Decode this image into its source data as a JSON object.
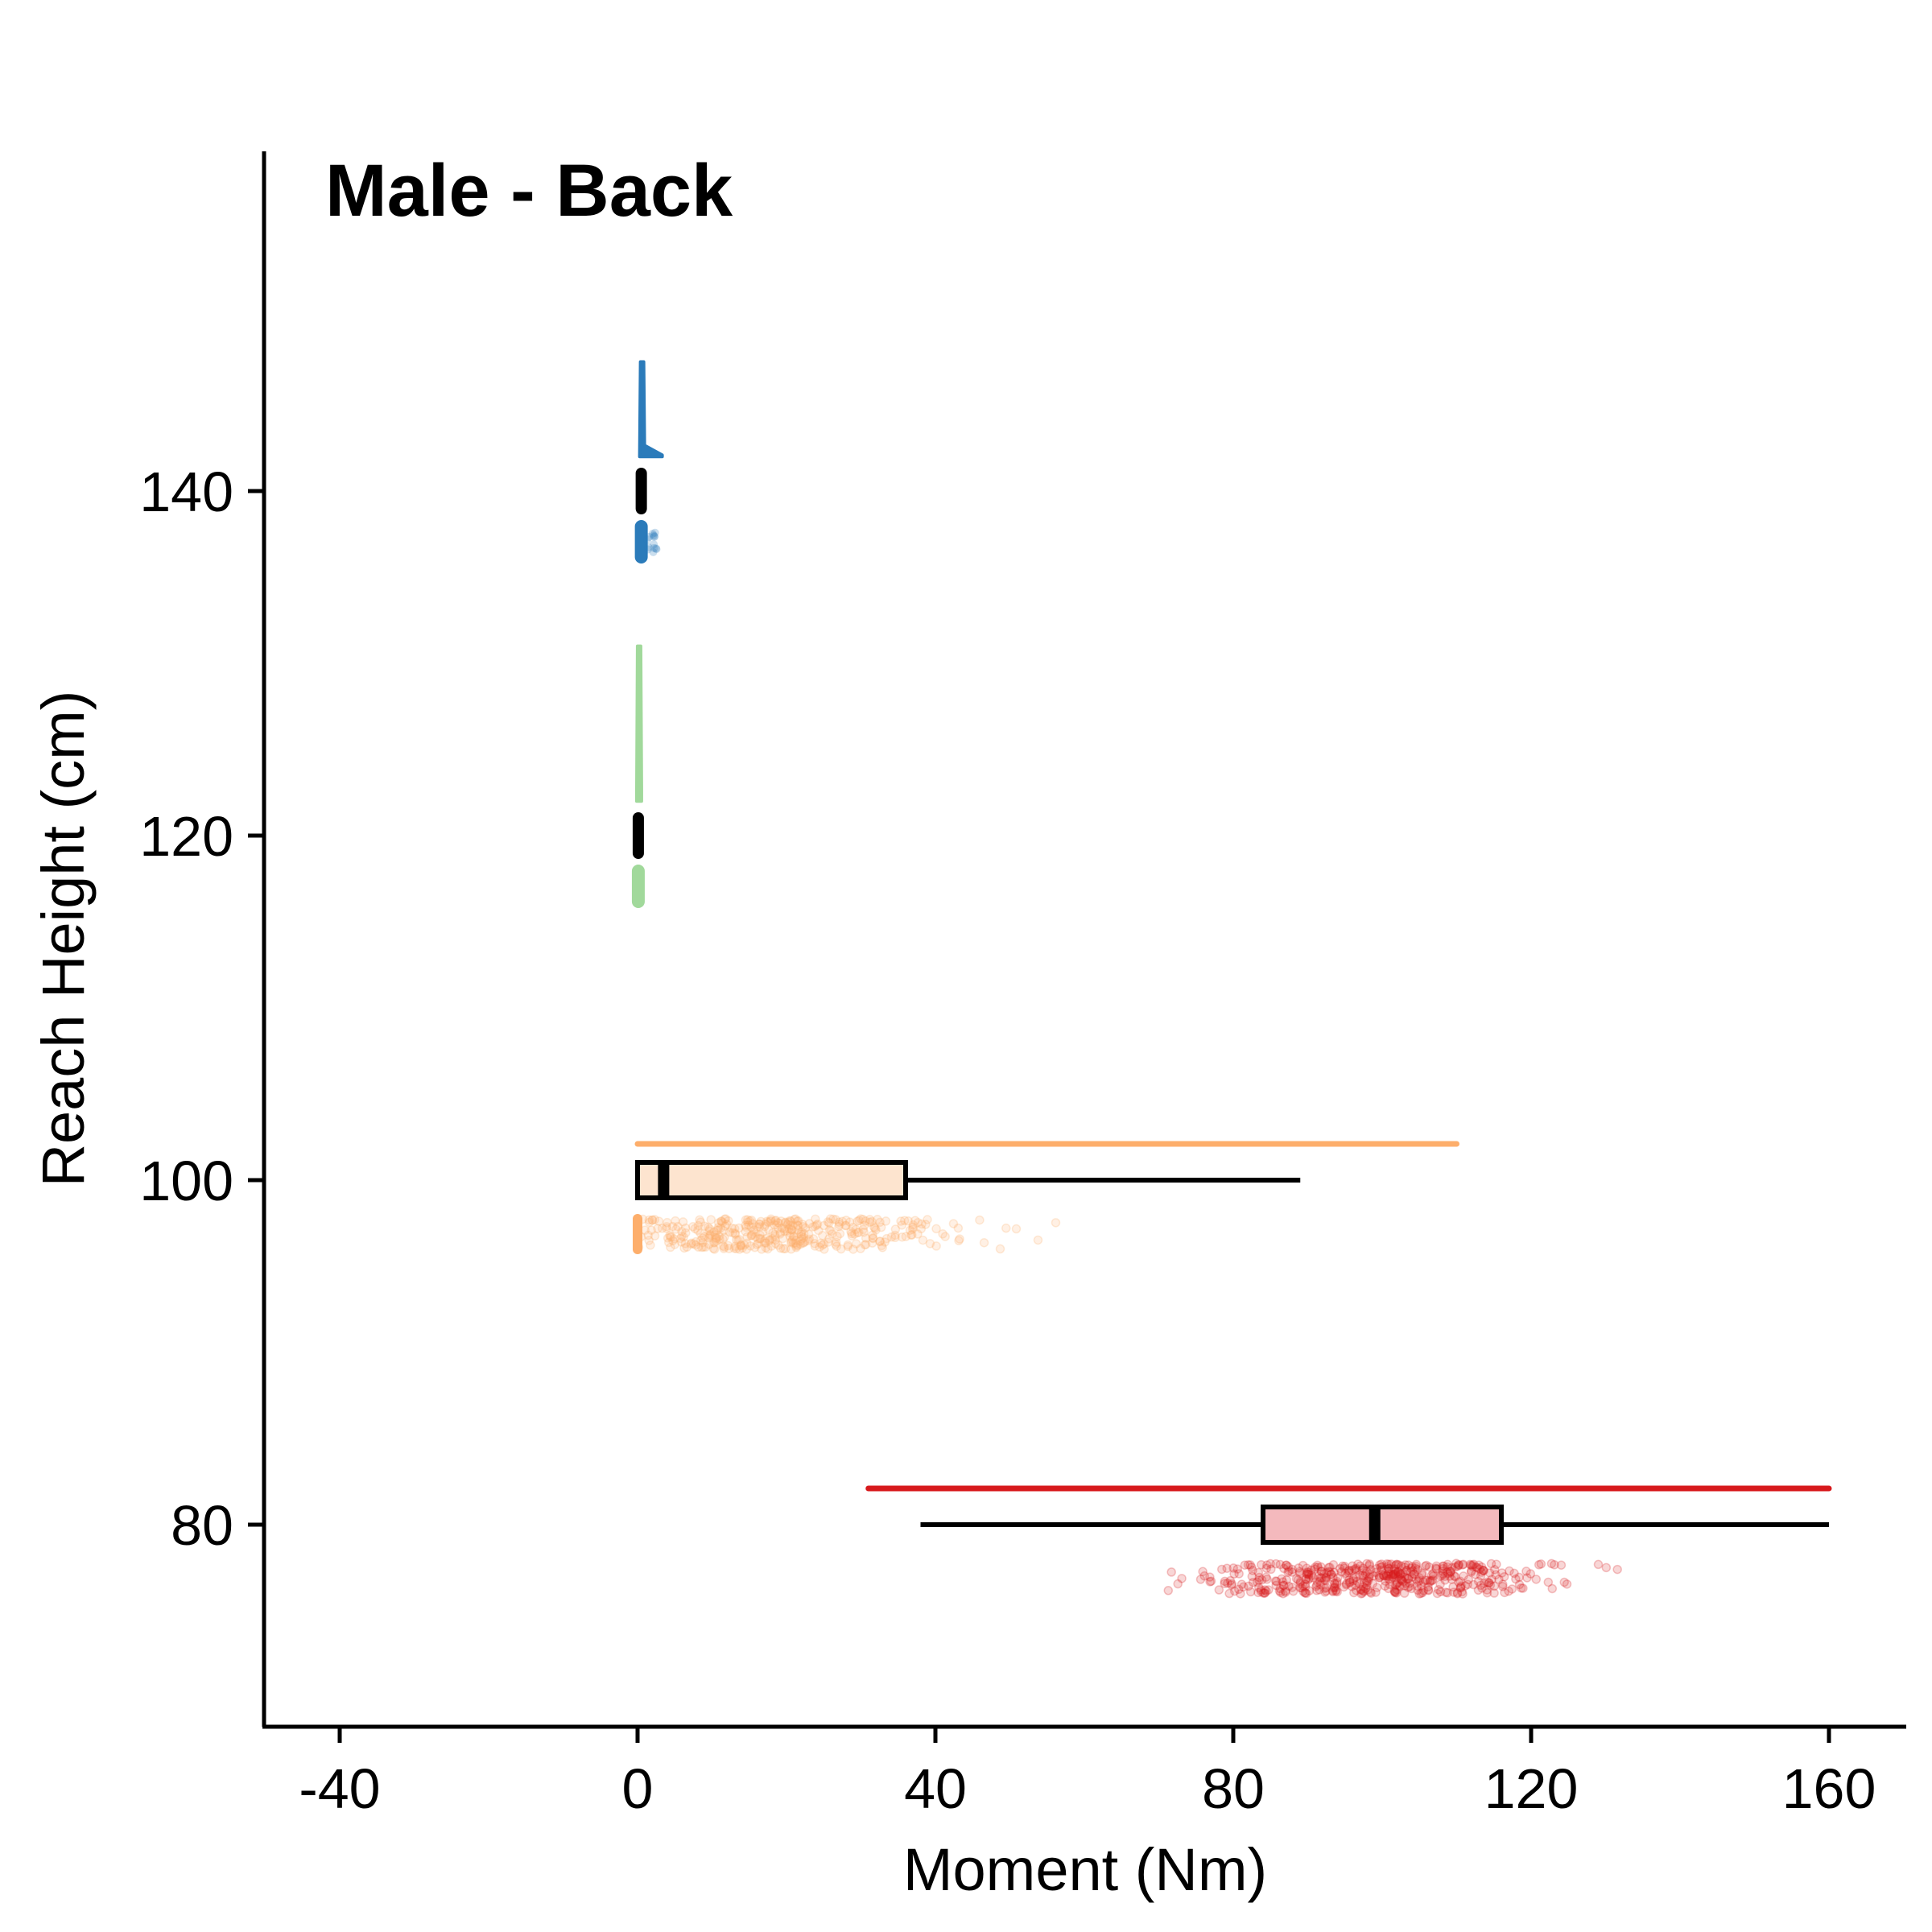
{
  "chart_data": {
    "type": "raincloud",
    "title": "Male - Back",
    "xlabel": "Moment (Nm)",
    "ylabel": "Reach Height (cm)",
    "xlim": [
      -50,
      170
    ],
    "ylim": [
      68,
      160
    ],
    "xticks": [
      -40,
      0,
      40,
      80,
      120,
      160
    ],
    "yticks": [
      80,
      100,
      120,
      140
    ],
    "grid": false,
    "series": [
      {
        "reach_height": 140,
        "color": "#2b7bba",
        "fill": "#c6dbef",
        "box": {
          "q1": 0.2,
          "median": 0.5,
          "q3": 0.9,
          "whisker_low": 0,
          "whisker_high": 1.5
        },
        "density_min": 0,
        "density_max": 2.5,
        "points_range": [
          0,
          2.5
        ]
      },
      {
        "reach_height": 120,
        "color": "#a1d99b",
        "fill": "#e5f5e0",
        "box": {
          "q1": 0,
          "median": 0.1,
          "q3": 0.3,
          "whisker_low": 0,
          "whisker_high": 0.6
        },
        "density_min": 0,
        "density_max": 0.6,
        "points_range": [
          0,
          0.6
        ]
      },
      {
        "reach_height": 100,
        "color": "#fdae6b",
        "fill": "#fde4cf",
        "box": {
          "q1": 0,
          "median": 3.5,
          "q3": 36,
          "whisker_low": 0,
          "whisker_high": 89
        },
        "density_min": 0,
        "density_max": 110,
        "points_range": [
          0,
          110
        ]
      },
      {
        "reach_height": 80,
        "color": "#d7191c",
        "fill": "#f4b9bd",
        "box": {
          "q1": 84,
          "median": 99,
          "q3": 116,
          "whisker_low": 38,
          "whisker_high": 160
        },
        "density_min": 31,
        "density_max": 160,
        "points_range": [
          31,
          160
        ]
      }
    ]
  }
}
